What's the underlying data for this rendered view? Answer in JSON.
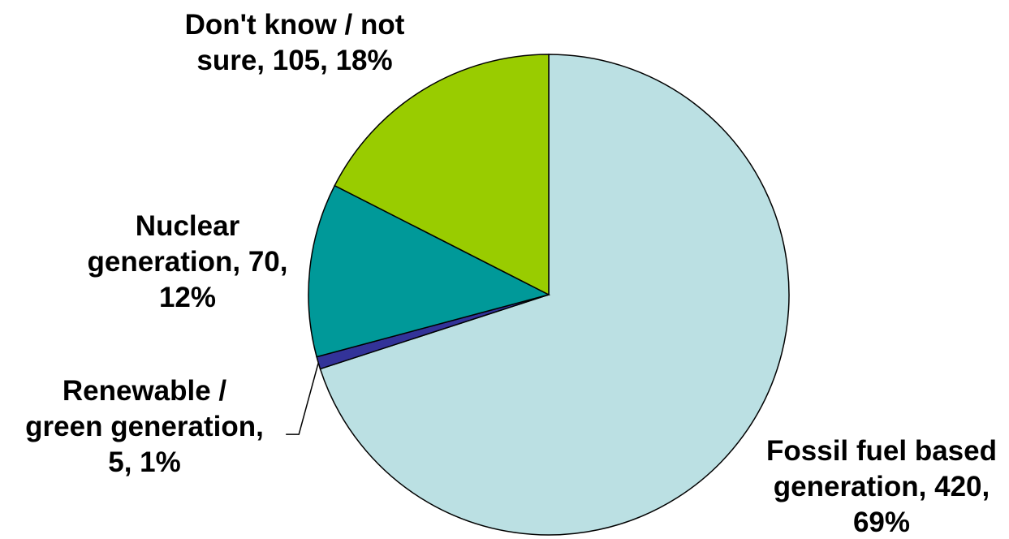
{
  "chart_data": {
    "type": "pie",
    "title": "",
    "start_angle_deg": 0,
    "direction": "clockwise",
    "slices": [
      {
        "label": "Fossil fuel based generation",
        "value": 420,
        "percent": "69%",
        "label_lines": [
          "Fossil fuel based",
          "generation, 420,",
          "69%"
        ],
        "color": "#BBE0E3"
      },
      {
        "label": "Renewable / green generation",
        "value": 5,
        "percent": "1%",
        "label_lines": [
          "Renewable /",
          "green generation,",
          "5, 1%"
        ],
        "color": "#333399"
      },
      {
        "label": "Nuclear generation",
        "value": 70,
        "percent": "12%",
        "label_lines": [
          "Nuclear",
          "generation, 70,",
          "12%"
        ],
        "color": "#009999"
      },
      {
        "label": "Don't know / not sure",
        "value": 105,
        "percent": "18%",
        "label_lines": [
          "Don't know / not",
          "sure, 105, 18%"
        ],
        "color": "#99CC00"
      }
    ],
    "legend": "none",
    "data_labels": "category, value, percent"
  }
}
